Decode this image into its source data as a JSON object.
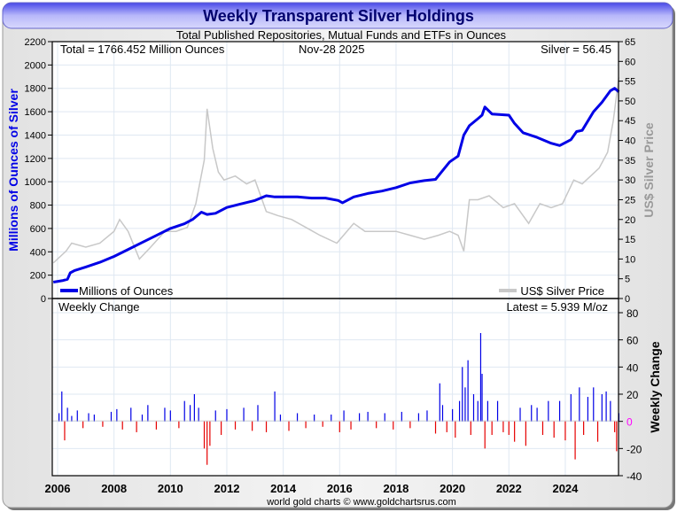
{
  "chart_data": {
    "type": "line",
    "title": "Weekly Transparent Silver Holdings",
    "subtitle": "Total Published Repositories, Mutual Funds and ETFs in Ounces",
    "annotations": {
      "total": "Total = 1766.452 Million Ounces",
      "date": "Nov-28  2025",
      "silver": "Silver = 56.45",
      "lower_title": "Weekly Change",
      "latest": "Latest = 5.939 M/oz"
    },
    "footer": "world gold charts © www.goldchartsrus.com",
    "x_range": [
      2005.8,
      2025.9
    ],
    "x_ticks": [
      "2006",
      "2008",
      "2010",
      "2012",
      "2014",
      "2016",
      "2018",
      "2020",
      "2022",
      "2024"
    ],
    "grid": true,
    "colors": {
      "holdings": "#0000e6",
      "price": "#c8c8c8",
      "positive": "#0000e6",
      "negative": "#e60000",
      "title_bar": "#6a6af0",
      "title_text": "#00006e"
    },
    "upper": {
      "ylabel_left": "Millions of Ounces of Silver",
      "ylabel_right": "US$ Silver Price",
      "ylim_left": [
        0,
        2200
      ],
      "ylim_right": [
        0,
        65
      ],
      "left_ticks": [
        "0",
        "200",
        "400",
        "600",
        "800",
        "1000",
        "1200",
        "1400",
        "1600",
        "1800",
        "2000",
        "2200"
      ],
      "right_ticks": [
        "0",
        "5",
        "10",
        "15",
        "20",
        "25",
        "30",
        "35",
        "40",
        "45",
        "50",
        "55",
        "60",
        "65"
      ],
      "legend_placement": "bottom",
      "series": [
        {
          "name": "Millions of Ounces",
          "axis": "left",
          "x": [
            2005.85,
            2006.2,
            2006.35,
            2006.45,
            2006.6,
            2007,
            2007.5,
            2008,
            2008.5,
            2009,
            2009.5,
            2010,
            2010.5,
            2010.8,
            2011.1,
            2011.3,
            2011.6,
            2012,
            2012.5,
            2013,
            2013.4,
            2013.7,
            2014,
            2014.5,
            2015,
            2015.5,
            2015.95,
            2016.1,
            2016.5,
            2017,
            2017.5,
            2018,
            2018.5,
            2019,
            2019.4,
            2019.6,
            2019.9,
            2020.2,
            2020.4,
            2020.6,
            2020.9,
            2021.05,
            2021.15,
            2021.4,
            2022,
            2022.2,
            2022.5,
            2023,
            2023.5,
            2023.8,
            2024.2,
            2024.4,
            2024.6,
            2025,
            2025.3,
            2025.6,
            2025.75,
            2025.9
          ],
          "y": [
            140,
            155,
            165,
            220,
            240,
            270,
            310,
            360,
            420,
            480,
            540,
            600,
            640,
            680,
            740,
            720,
            730,
            780,
            810,
            840,
            880,
            870,
            870,
            870,
            860,
            860,
            840,
            820,
            870,
            900,
            920,
            950,
            990,
            1010,
            1020,
            1080,
            1170,
            1220,
            1400,
            1480,
            1540,
            1570,
            1640,
            1580,
            1570,
            1500,
            1420,
            1380,
            1330,
            1310,
            1360,
            1430,
            1440,
            1600,
            1680,
            1780,
            1800,
            1770
          ]
        },
        {
          "name": "US$ Silver Price",
          "axis": "right",
          "x": [
            2005.85,
            2006.3,
            2006.5,
            2007,
            2007.5,
            2008,
            2008.2,
            2008.5,
            2008.9,
            2009.3,
            2009.8,
            2010.2,
            2010.6,
            2010.9,
            2011.2,
            2011.3,
            2011.5,
            2011.7,
            2011.9,
            2012.3,
            2012.7,
            2013,
            2013.4,
            2013.8,
            2014.3,
            2014.8,
            2015.3,
            2015.9,
            2016.5,
            2016.9,
            2017.5,
            2018,
            2018.5,
            2019,
            2019.5,
            2019.9,
            2020.2,
            2020.4,
            2020.6,
            2020.9,
            2021.3,
            2021.8,
            2022.2,
            2022.7,
            2023.1,
            2023.5,
            2023.9,
            2024.3,
            2024.6,
            2024.9,
            2025.2,
            2025.5,
            2025.7,
            2025.9
          ],
          "y": [
            9,
            12,
            14,
            13,
            14,
            17,
            20,
            17,
            10,
            13,
            17,
            17,
            18,
            24,
            35,
            48,
            38,
            32,
            30,
            31,
            29,
            30,
            22,
            21,
            20,
            18,
            16,
            14,
            19,
            17,
            17,
            17,
            16,
            15,
            16,
            17,
            16,
            12,
            25,
            25,
            26,
            23,
            24,
            19,
            24,
            23,
            24,
            30,
            29,
            31,
            33,
            37,
            45,
            56
          ]
        }
      ]
    },
    "lower": {
      "type": "bar",
      "ylabel": "Weekly Change",
      "ylim": [
        -40,
        80
      ],
      "ticks": [
        "-40",
        "-20",
        "0",
        "20",
        "40",
        "60",
        "80"
      ],
      "x": [
        2006.05,
        2006.15,
        2006.25,
        2006.35,
        2006.5,
        2006.7,
        2006.9,
        2007.1,
        2007.3,
        2007.6,
        2007.9,
        2008.1,
        2008.3,
        2008.6,
        2008.8,
        2009.0,
        2009.2,
        2009.5,
        2009.8,
        2010.0,
        2010.3,
        2010.5,
        2010.7,
        2010.85,
        2011.0,
        2011.2,
        2011.3,
        2011.4,
        2011.6,
        2011.8,
        2012.0,
        2012.3,
        2012.6,
        2012.9,
        2013.1,
        2013.4,
        2013.7,
        2013.9,
        2014.2,
        2014.5,
        2014.8,
        2015.1,
        2015.4,
        2015.7,
        2016.0,
        2016.15,
        2016.4,
        2016.7,
        2017.0,
        2017.3,
        2017.6,
        2017.9,
        2018.2,
        2018.5,
        2018.8,
        2019.1,
        2019.4,
        2019.55,
        2019.65,
        2019.8,
        2020.0,
        2020.1,
        2020.25,
        2020.35,
        2020.45,
        2020.55,
        2020.65,
        2020.75,
        2020.9,
        2021.0,
        2021.05,
        2021.15,
        2021.25,
        2021.4,
        2021.6,
        2021.8,
        2022.0,
        2022.2,
        2022.4,
        2022.6,
        2022.8,
        2023.0,
        2023.2,
        2023.4,
        2023.6,
        2023.8,
        2024.0,
        2024.2,
        2024.35,
        2024.5,
        2024.65,
        2024.8,
        2025.0,
        2025.15,
        2025.3,
        2025.45,
        2025.6,
        2025.75,
        2025.82,
        2025.9
      ],
      "values": [
        6,
        22,
        -14,
        10,
        4,
        8,
        -5,
        6,
        5,
        -4,
        7,
        9,
        -6,
        10,
        -8,
        5,
        12,
        -6,
        10,
        8,
        -5,
        15,
        12,
        20,
        10,
        -20,
        -32,
        -18,
        8,
        -10,
        9,
        -6,
        10,
        -7,
        12,
        -8,
        22,
        5,
        -7,
        6,
        -5,
        5,
        -4,
        5,
        -8,
        8,
        -6,
        6,
        7,
        -5,
        6,
        -6,
        7,
        -5,
        6,
        8,
        -9,
        28,
        12,
        -8,
        9,
        -12,
        15,
        40,
        25,
        45,
        -10,
        20,
        15,
        65,
        35,
        -20,
        15,
        -10,
        15,
        -8,
        -10,
        -15,
        10,
        -18,
        12,
        10,
        -10,
        15,
        -12,
        15,
        -14,
        20,
        -28,
        25,
        -10,
        18,
        25,
        -15,
        20,
        22,
        15,
        -8,
        -22,
        6
      ]
    }
  }
}
